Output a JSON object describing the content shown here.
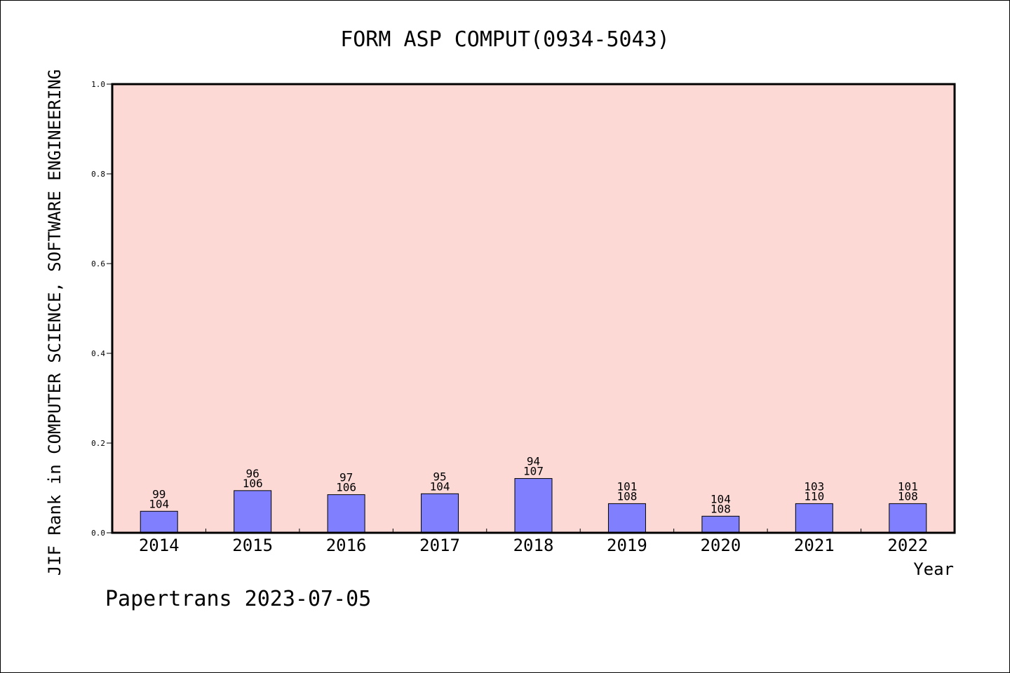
{
  "chart_data": {
    "type": "bar",
    "title": "FORM ASP COMPUT(0934-5043)",
    "xlabel": "Year",
    "ylabel": "JIF Rank in COMPUTER SCIENCE, SOFTWARE ENGINEERING",
    "ylim": [
      0,
      1.0
    ],
    "yticks": [
      "0.0",
      "0.2",
      "0.4",
      "0.6",
      "0.8",
      "1.0"
    ],
    "categories": [
      "2014",
      "2015",
      "2016",
      "2017",
      "2018",
      "2019",
      "2020",
      "2021",
      "2022"
    ],
    "values": [
      0.048,
      0.094,
      0.085,
      0.087,
      0.121,
      0.065,
      0.037,
      0.065,
      0.065
    ],
    "rank": [
      "99",
      "96",
      "97",
      "95",
      "94",
      "101",
      "104",
      "103",
      "101"
    ],
    "total": [
      "104",
      "106",
      "106",
      "104",
      "107",
      "108",
      "108",
      "110",
      "108"
    ],
    "grid": false,
    "legend": "none",
    "colors": {
      "plot_bg": "#FDD9D6",
      "bar_fill": "#8080FF",
      "bar_stroke": "#000000",
      "axis": "#000000"
    }
  },
  "footer": {
    "watermark": "Papertrans 2023-07-05"
  }
}
